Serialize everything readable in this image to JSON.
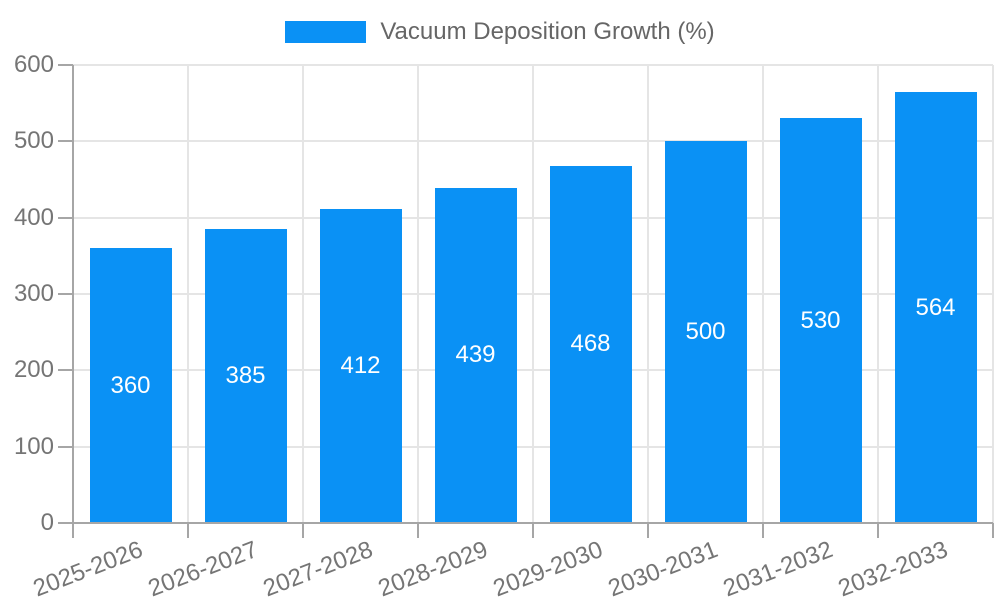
{
  "chart_data": {
    "type": "bar",
    "title": "",
    "legend": "Vacuum Deposition Growth (%)",
    "legend_position": "top",
    "categories": [
      "2025-2026",
      "2026-2027",
      "2027-2028",
      "2028-2029",
      "2029-2030",
      "2030-2031",
      "2031-2032",
      "2032-2033"
    ],
    "series": [
      {
        "name": "Vacuum Deposition Growth (%)",
        "values": [
          360,
          385,
          412,
          439,
          468,
          500,
          530,
          564
        ]
      }
    ],
    "value_labels_shown": true,
    "xlabel": "",
    "ylabel": "",
    "ylim": [
      0,
      600
    ],
    "yticks": [
      0,
      100,
      200,
      300,
      400,
      500,
      600
    ],
    "grid": true,
    "x_label_rotation_deg": -21,
    "colors": {
      "bar": "#0a91f5",
      "grid": "#e5e5e5",
      "axis": "#a6a6a6",
      "tick_text": "#757575",
      "legend_text": "#666666",
      "value_text": "#ffffff"
    }
  }
}
